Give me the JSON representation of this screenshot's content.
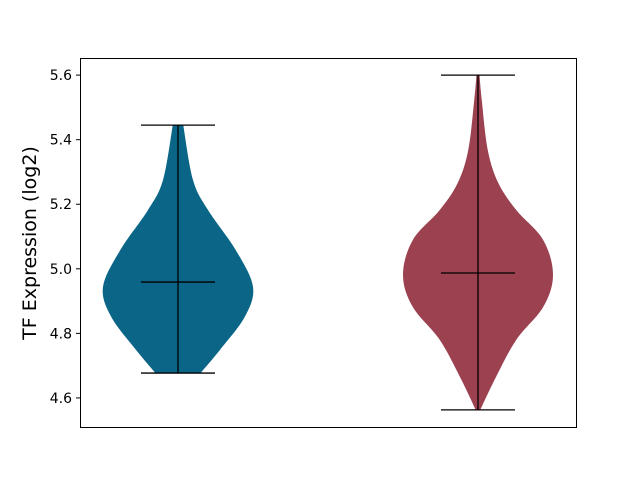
{
  "chart_data": {
    "type": "violin",
    "title": "",
    "xlabel": "",
    "ylabel": "TF Expression (log2)",
    "ylim": [
      4.51,
      5.653
    ],
    "yticks": [
      4.6,
      4.8,
      5.0,
      5.2,
      5.4,
      5.6
    ],
    "ytick_labels": [
      "4.6",
      "4.8",
      "5.0",
      "5.2",
      "5.4",
      "5.6"
    ],
    "xticks": [],
    "grid": false,
    "series": [
      {
        "color": "#0a6587",
        "min": 4.677,
        "max": 5.445,
        "median": 4.959,
        "density_profile": [
          [
            5.445,
            0.07
          ],
          [
            5.275,
            0.2
          ],
          [
            5.182,
            0.4
          ],
          [
            5.058,
            0.77
          ],
          [
            4.944,
            1.0
          ],
          [
            4.851,
            0.89
          ],
          [
            4.749,
            0.56
          ],
          [
            4.677,
            0.3
          ]
        ]
      },
      {
        "color": "#9b4150",
        "min": 4.563,
        "max": 5.6,
        "median": 4.987,
        "density_profile": [
          [
            5.6,
            0.02
          ],
          [
            5.523,
            0.05
          ],
          [
            5.368,
            0.13
          ],
          [
            5.266,
            0.27
          ],
          [
            5.182,
            0.51
          ],
          [
            5.089,
            0.87
          ],
          [
            4.981,
            1.0
          ],
          [
            4.882,
            0.87
          ],
          [
            4.78,
            0.51
          ],
          [
            4.665,
            0.24
          ],
          [
            4.563,
            0.03
          ]
        ]
      }
    ]
  }
}
